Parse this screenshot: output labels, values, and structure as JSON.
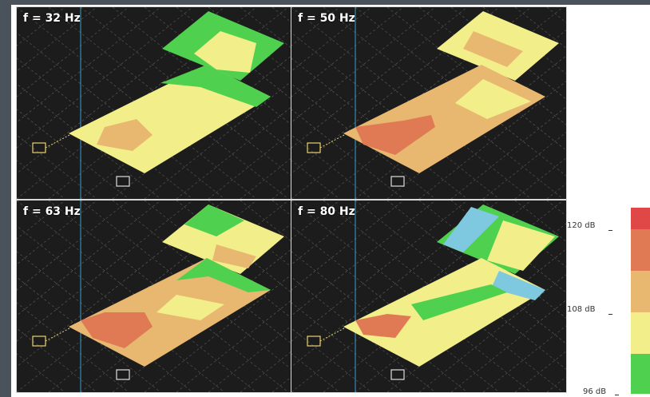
{
  "panels": [
    {
      "label": "f = 32 Hz"
    },
    {
      "label": "f = 50 Hz"
    },
    {
      "label": "f = 63 Hz"
    },
    {
      "label": "f = 80 Hz"
    }
  ],
  "scale": {
    "labels": [
      "120 dB",
      "108 dB",
      "96 dB"
    ],
    "colors": [
      "#e04848",
      "#e07a55",
      "#e8b870",
      "#f2ef8a",
      "#4fd04f"
    ]
  },
  "colors": {
    "panel_bg": "#1c1c1c",
    "green": "#4fd04f",
    "yellow": "#f2ef8a",
    "orange": "#e8b870",
    "salmon": "#e07a55",
    "red": "#e04848",
    "blue": "#7ec8e0"
  }
}
